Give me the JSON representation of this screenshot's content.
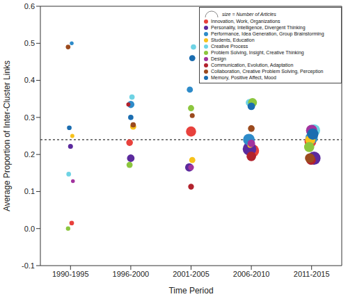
{
  "chart_data": {
    "type": "scatter",
    "x_label": "Time Period",
    "y_label": "Average Proportion of Inter-Cluster Links",
    "xlim": [
      0.5,
      5.5
    ],
    "xticks": [
      {
        "value": 1,
        "label": "1990-1995"
      },
      {
        "value": 2,
        "label": "1996-2000"
      },
      {
        "value": 3,
        "label": "2001-2005"
      },
      {
        "value": 4,
        "label": "2006-2010"
      },
      {
        "value": 5,
        "label": "2011-2015"
      }
    ],
    "ylim": [
      -0.1,
      0.6
    ],
    "yticks": [
      -0.1,
      {
        "value": 0,
        "label": "0.0"
      },
      0.1,
      0.2,
      0.3,
      0.4,
      0.5,
      0.6
    ],
    "reference_line": 0.24,
    "size_label": "size = Number of Articles",
    "legend": "upper right",
    "series": [
      {
        "name": "Innovation, Work, Organizations",
        "color": "#e8413c",
        "x": [
          1.02,
          1.98,
          3.0,
          4.02,
          4.98
        ],
        "values": [
          0.015,
          0.232,
          0.262,
          0.21,
          0.235
        ],
        "sizes": [
          5,
          15,
          40,
          70,
          55
        ]
      },
      {
        "name": "Personality, Intelligence, Divergent Thinking",
        "color": "#5b2a9d",
        "x": [
          1.0,
          2.0,
          2.97,
          3.97,
          5.04
        ],
        "values": [
          0.222,
          0.19,
          0.165,
          0.215,
          0.19
        ],
        "sizes": [
          6,
          20,
          25,
          75,
          70
        ]
      },
      {
        "name": "Performance, Idea Generation, Group Brainstorming",
        "color": "#2e8bc9",
        "x": [
          1.02,
          2.0,
          2.98,
          3.96,
          5.0
        ],
        "values": [
          0.5,
          0.335,
          0.375,
          0.24,
          0.245
        ],
        "sizes": [
          2,
          18,
          12,
          55,
          60
        ]
      },
      {
        "name": "Students, Education",
        "color": "#f7c21b",
        "x": [
          1.03,
          2.04,
          3.02,
          3.98,
          4.98
        ],
        "values": [
          0.25,
          0.275,
          0.185,
          0.225,
          0.24
        ],
        "sizes": [
          3,
          12,
          12,
          8,
          40
        ]
      },
      {
        "name": "Creative Process",
        "color": "#6ed3e4",
        "x": [
          0.97,
          2.02,
          3.04,
          3.97,
          5.04
        ],
        "values": [
          0.147,
          0.355,
          0.49,
          0.34,
          0.265
        ],
        "sizes": [
          5,
          8,
          8,
          20,
          60
        ]
      },
      {
        "name": "Problem Solving, Insight, Creative Thinking",
        "color": "#8cc63e",
        "x": [
          0.96,
          1.98,
          3.0,
          4.02,
          4.96
        ],
        "values": [
          0.0,
          0.172,
          0.325,
          0.34,
          0.22
        ],
        "sizes": [
          4,
          12,
          12,
          30,
          40
        ]
      },
      {
        "name": "Design",
        "color": "#a2339e",
        "x": [
          1.04,
          3.0,
          4.0,
          5.0
        ],
        "values": [
          0.128,
          0.165,
          0.23,
          0.265
        ],
        "sizes": [
          2,
          10,
          20,
          50
        ]
      },
      {
        "name": "Communication, Evolution, Adaptation",
        "color": "#b2222d",
        "x": [
          1.96,
          3.0,
          4.0,
          4.99
        ],
        "values": [
          0.335,
          0.113,
          0.195,
          0.185
        ],
        "sizes": [
          3,
          10,
          35,
          35
        ]
      },
      {
        "name": "Collaboration, Creative Problem Solving, Perception",
        "color": "#9b4a1e",
        "x": [
          0.96,
          2.04,
          3.02,
          4.0,
          4.97
        ],
        "values": [
          0.49,
          0.28,
          0.305,
          0.27,
          0.19
        ],
        "sizes": [
          5,
          8,
          6,
          15,
          35
        ]
      },
      {
        "name": "Memory, Positive Affect, Mood",
        "color": "#1b6db0",
        "x": [
          0.98,
          2.0,
          3.02,
          4.0,
          5.02
        ],
        "values": [
          0.272,
          0.3,
          0.46,
          0.33,
          0.255
        ],
        "sizes": [
          5,
          8,
          12,
          20,
          50
        ]
      }
    ]
  }
}
